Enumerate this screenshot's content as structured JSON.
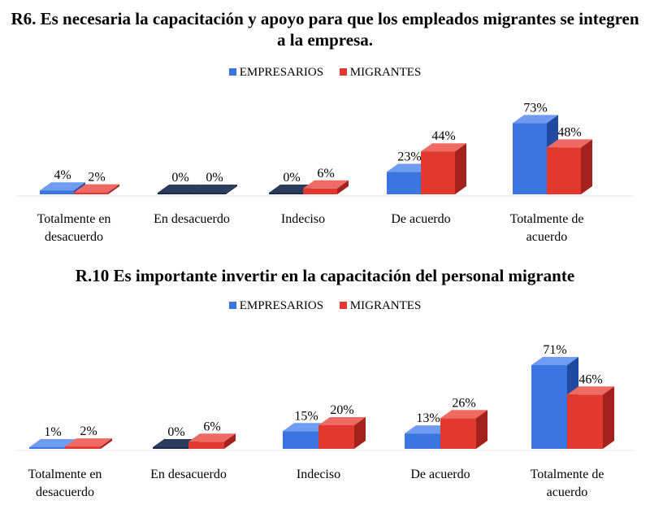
{
  "chart_data": [
    {
      "type": "bar",
      "title": "R6. Es necesaria la capacitación y apoyo para que los empleados migrantes se integren a la empresa.",
      "categories": [
        "Totalmente en desacuerdo",
        "En desacuerdo",
        "Indeciso",
        "De acuerdo",
        "Totalmente de acuerdo"
      ],
      "series": [
        {
          "name": "EMPRESARIOS",
          "values": [
            4,
            0,
            0,
            23,
            73
          ]
        },
        {
          "name": "MIGRANTES",
          "values": [
            2,
            0,
            6,
            44,
            48
          ]
        }
      ],
      "value_labels": {
        "EMPRESARIOS": [
          "4%",
          "0%",
          "0%",
          "23%",
          "73%"
        ],
        "MIGRANTES": [
          "2%",
          "0%",
          "6%",
          "44%",
          "48%"
        ]
      },
      "ylim": [
        0,
        80
      ],
      "legend_position": "top-center",
      "grid": false
    },
    {
      "type": "bar",
      "title": "R.10 Es importante invertir en la capacitación del personal migrante",
      "categories": [
        "Totalmente en desacuerdo",
        "En desacuerdo",
        "Indeciso",
        "De acuerdo",
        "Totalmente de acuerdo"
      ],
      "series": [
        {
          "name": "EMPRESARIOS",
          "values": [
            1,
            0,
            15,
            13,
            71
          ]
        },
        {
          "name": "MIGRANTES",
          "values": [
            2,
            6,
            20,
            26,
            46
          ]
        }
      ],
      "value_labels": {
        "EMPRESARIOS": [
          "1%",
          "0%",
          "15%",
          "13%",
          "71%"
        ],
        "MIGRANTES": [
          "2%",
          "6%",
          "20%",
          "26%",
          "46%"
        ]
      },
      "ylim": [
        0,
        80
      ],
      "legend_position": "top-center",
      "grid": false
    }
  ],
  "colors": {
    "empresarios": "#3b76e0",
    "empresarios_side": "#1f4aa0",
    "empresarios_top": "#6f9cf0",
    "migrantes": "#e2382e",
    "migrantes_side": "#a3221b",
    "migrantes_top": "#ee6a62",
    "zero_dark": "#1a2a4a"
  }
}
